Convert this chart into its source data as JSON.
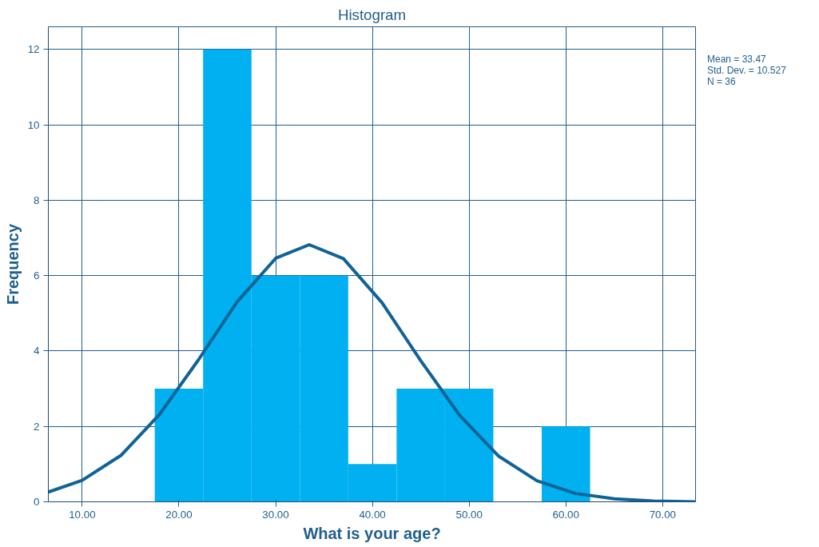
{
  "chart_data": {
    "type": "histogram",
    "title": "Histogram",
    "xlabel": "What is your age?",
    "ylabel": "Frequency",
    "bins": [
      17.5,
      22.5,
      27.5,
      32.5,
      37.5,
      42.5,
      47.5,
      52.5,
      57.5,
      62.5
    ],
    "values": [
      3,
      12,
      6,
      6,
      1,
      3,
      3,
      0,
      2
    ],
    "color": "#00b0f0",
    "series": [
      {
        "type": "line",
        "color": "#0f6396",
        "x": [
          6.5,
          10,
          14,
          18,
          22,
          26,
          30,
          33.47,
          37,
          41,
          45,
          49,
          53,
          57,
          61,
          65,
          69,
          73.4
        ],
        "values": [
          0.26,
          0.57,
          1.23,
          2.32,
          3.76,
          5.3,
          6.46,
          6.82,
          6.45,
          5.28,
          3.74,
          2.3,
          1.22,
          0.56,
          0.22,
          0.08,
          0.02,
          0.0
        ]
      }
    ],
    "xlim": [
      6.5,
      73.4
    ],
    "ylim": [
      0,
      12.6
    ],
    "xticks": [
      {
        "value": 10,
        "label": "10.00"
      },
      {
        "value": 20,
        "label": "20.00"
      },
      {
        "value": 30,
        "label": "30.00"
      },
      {
        "value": 40,
        "label": "40.00"
      },
      {
        "value": 50,
        "label": "50.00"
      },
      {
        "value": 60,
        "label": "60.00"
      },
      {
        "value": 70,
        "label": "70.00"
      }
    ],
    "yticks": [
      0,
      2,
      4,
      6,
      8,
      10,
      12
    ],
    "grid": true,
    "annotations": [
      "Mean = 33.47",
      "Std. Dev. = 10.527",
      "N = 36"
    ]
  }
}
